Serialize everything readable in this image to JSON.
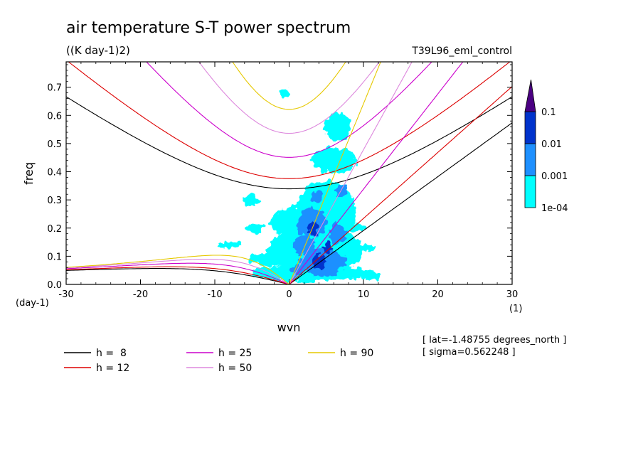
{
  "chart_data": {
    "type": "heatmap",
    "title": "air temperature S-T power spectrum",
    "subtitle": "((K day-1)2)",
    "run_label": "T39L96_eml_control",
    "xlabel": "wvn",
    "ylabel": "freq",
    "x_unit": "(1)",
    "y_unit": "(day-1)",
    "xlim": [
      -30,
      30
    ],
    "ylim": [
      0,
      0.79
    ],
    "x_ticks": [
      -30,
      -20,
      -10,
      0,
      10,
      20,
      30
    ],
    "x_tick_labels": [
      "-30",
      "-20",
      "-10",
      "0",
      "10",
      "20",
      "30"
    ],
    "y_ticks": [
      0.0,
      0.1,
      0.2,
      0.3,
      0.4,
      0.5,
      0.6,
      0.7
    ],
    "y_tick_labels": [
      "0.0",
      "0.1",
      "0.2",
      "0.3",
      "0.4",
      "0.5",
      "0.6",
      "0.7"
    ],
    "colorbar": {
      "levels": [
        "1e-04",
        "0.001",
        "0.01",
        "0.1"
      ],
      "colors": [
        "#00ffff",
        "#1e90ff",
        "#0033cc",
        "#4b0082"
      ]
    },
    "annotations": [
      "[ lat=-1.48755 degrees_north ]",
      "[ sigma=0.562248 ]"
    ],
    "dispersion_curves": [
      {
        "name": "h =  8",
        "h": 8,
        "color": "#000000"
      },
      {
        "name": "h = 12",
        "h": 12,
        "color": "#dd0000"
      },
      {
        "name": "h = 25",
        "h": 25,
        "color": "#cc00cc"
      },
      {
        "name": "h = 50",
        "h": 50,
        "color": "#dd88dd"
      },
      {
        "name": "h = 90",
        "h": 90,
        "color": "#e6c800"
      }
    ],
    "spectral_blobs": [
      {
        "level": 0,
        "x": 5,
        "y": 0.26,
        "w": 8,
        "h": 0.22
      },
      {
        "level": 0,
        "x": 2,
        "y": 0.22,
        "w": 9,
        "h": 0.12
      },
      {
        "level": 0,
        "x": 3.5,
        "y": 0.12,
        "w": 13,
        "h": 0.16
      },
      {
        "level": 0,
        "x": 3,
        "y": 0.04,
        "w": 16,
        "h": 0.06
      },
      {
        "level": 0,
        "x": 6,
        "y": 0.44,
        "w": 6,
        "h": 0.09
      },
      {
        "level": 0,
        "x": 6.5,
        "y": 0.56,
        "w": 3.5,
        "h": 0.1
      },
      {
        "level": 0,
        "x": -2,
        "y": 0.09,
        "w": 7,
        "h": 0.05
      },
      {
        "level": 0,
        "x": -5,
        "y": 0.3,
        "w": 2.5,
        "h": 0.04
      },
      {
        "level": 0,
        "x": -8,
        "y": 0.14,
        "w": 3,
        "h": 0.025
      },
      {
        "level": 0,
        "x": -0.5,
        "y": 0.68,
        "w": 1.6,
        "h": 0.025
      },
      {
        "level": 0,
        "x": 10,
        "y": 0.13,
        "w": 3.5,
        "h": 0.025
      },
      {
        "level": 0,
        "x": 9,
        "y": 0.2,
        "w": 2.2,
        "h": 0.03
      },
      {
        "level": 0,
        "x": -4.5,
        "y": 0.2,
        "w": 2.5,
        "h": 0.03
      },
      {
        "level": 0,
        "x": 11,
        "y": 0.03,
        "w": 3,
        "h": 0.03
      },
      {
        "level": 1,
        "x": 3,
        "y": 0.22,
        "w": 4,
        "h": 0.1
      },
      {
        "level": 1,
        "x": 4.5,
        "y": 0.08,
        "w": 6,
        "h": 0.1
      },
      {
        "level": 1,
        "x": 2,
        "y": 0.14,
        "w": 3,
        "h": 0.07
      },
      {
        "level": 1,
        "x": 3.8,
        "y": 0.31,
        "w": 1.8,
        "h": 0.04
      },
      {
        "level": 1,
        "x": 6.5,
        "y": 0.18,
        "w": 2.2,
        "h": 0.07
      },
      {
        "level": 1,
        "x": 7,
        "y": 0.33,
        "w": 1.6,
        "h": 0.04
      },
      {
        "level": 1,
        "x": 1.2,
        "y": 0.05,
        "w": 2,
        "h": 0.04
      },
      {
        "level": 2,
        "x": 4,
        "y": 0.08,
        "w": 1.8,
        "h": 0.05
      },
      {
        "level": 2,
        "x": 3.2,
        "y": 0.2,
        "w": 1.4,
        "h": 0.045
      },
      {
        "level": 2,
        "x": 5.2,
        "y": 0.13,
        "w": 1.2,
        "h": 0.035
      }
    ]
  }
}
